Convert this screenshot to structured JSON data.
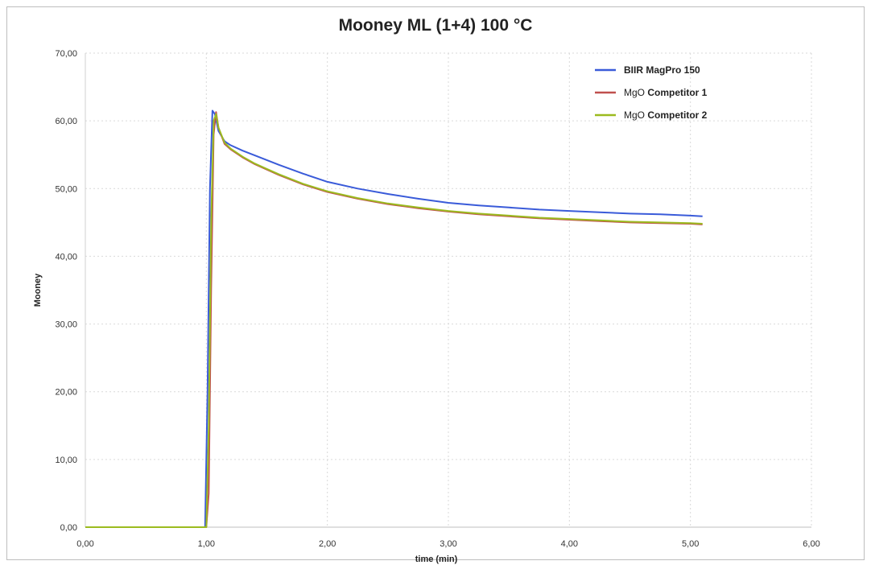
{
  "chart_data": {
    "type": "line",
    "title": "Mooney ML (1+4) 100 °C",
    "xlabel": "time (min)",
    "ylabel": "Mooney",
    "xlim": [
      0,
      6
    ],
    "ylim": [
      0,
      70
    ],
    "x_ticks": [
      "0,00",
      "1,00",
      "2,00",
      "3,00",
      "4,00",
      "5,00",
      "6,00"
    ],
    "y_ticks": [
      "0,00",
      "10,00",
      "20,00",
      "30,00",
      "40,00",
      "50,00",
      "60,00",
      "70,00"
    ],
    "grid": true,
    "legend_position": "top-right",
    "series": [
      {
        "name_prefix": "",
        "name_main": "BIIR MagPro 150",
        "color": "#3a5bd9",
        "x": [
          0,
          0.5,
          0.99,
          1.01,
          1.03,
          1.05,
          1.07,
          1.1,
          1.15,
          1.2,
          1.3,
          1.4,
          1.5,
          1.6,
          1.8,
          2.0,
          2.25,
          2.5,
          2.75,
          3.0,
          3.25,
          3.5,
          3.75,
          4.0,
          4.25,
          4.5,
          4.75,
          5.0,
          5.1
        ],
        "y": [
          0,
          0,
          0,
          20,
          50,
          61.5,
          61.0,
          58.5,
          57.0,
          56.4,
          55.6,
          54.9,
          54.2,
          53.5,
          52.2,
          51.0,
          50.0,
          49.2,
          48.5,
          47.9,
          47.5,
          47.2,
          46.9,
          46.7,
          46.5,
          46.3,
          46.2,
          46.0,
          45.9
        ]
      },
      {
        "name_prefix": "MgO",
        "name_main": "Competitor 1",
        "color": "#c0504d",
        "x": [
          0,
          0.5,
          1.0,
          1.02,
          1.04,
          1.06,
          1.08,
          1.1,
          1.15,
          1.2,
          1.3,
          1.4,
          1.5,
          1.6,
          1.8,
          2.0,
          2.25,
          2.5,
          2.75,
          3.0,
          3.25,
          3.5,
          3.75,
          4.0,
          4.25,
          4.5,
          4.75,
          5.0,
          5.1
        ],
        "y": [
          0,
          0,
          0,
          5,
          35,
          58,
          61.3,
          59.0,
          56.6,
          55.8,
          54.6,
          53.6,
          52.8,
          52.0,
          50.6,
          49.5,
          48.5,
          47.7,
          47.1,
          46.6,
          46.2,
          45.9,
          45.6,
          45.4,
          45.2,
          45.0,
          44.9,
          44.8,
          44.7
        ]
      },
      {
        "name_prefix": "MgO",
        "name_main": "Competitor 2",
        "color": "#9bbb1f",
        "x": [
          0,
          0.5,
          1.0,
          1.02,
          1.04,
          1.06,
          1.08,
          1.1,
          1.15,
          1.2,
          1.3,
          1.4,
          1.5,
          1.6,
          1.8,
          2.0,
          2.25,
          2.5,
          2.75,
          3.0,
          3.25,
          3.5,
          3.75,
          4.0,
          4.25,
          4.5,
          4.75,
          5.0,
          5.1
        ],
        "y": [
          0,
          0,
          0,
          15,
          45,
          60.0,
          61.0,
          59.0,
          56.8,
          55.9,
          54.7,
          53.7,
          52.9,
          52.1,
          50.7,
          49.6,
          48.6,
          47.8,
          47.2,
          46.7,
          46.3,
          46.0,
          45.7,
          45.5,
          45.3,
          45.1,
          45.0,
          44.9,
          44.8
        ]
      }
    ]
  }
}
